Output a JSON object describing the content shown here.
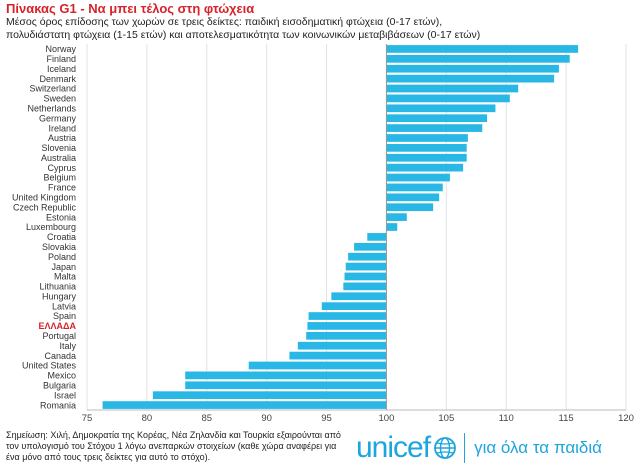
{
  "chart_data": {
    "type": "bar",
    "orientation": "horizontal",
    "title": "Πίνακας G1 -  Να μπει τέλος στη φτώχεια",
    "subtitle_lines": [
      "Μέσος όρος επίδοσης των χωρών σε τρεις δείκτες: παιδική εισοδηματική φτώχεια (0-17 ετών),",
      "πολυδιάστατη φτώχεια (1-15 ετών) και αποτελεσματικότητα των κοινωνικών μεταβιβάσεων (0-17 ετών)"
    ],
    "baseline": 100,
    "xlim": [
      75,
      120
    ],
    "xticks": [
      "75",
      "80",
      "85",
      "90",
      "95",
      "100",
      "105",
      "110",
      "115",
      "120"
    ],
    "bar_color": "#29b8e5",
    "highlight_color": "#d6232a",
    "highlight_category": "ΕΛΛΑΔΑ",
    "categories": [
      "Norway",
      "Finland",
      "Iceland",
      "Denmark",
      "Switzerland",
      "Sweden",
      "Netherlands",
      "Germany",
      "Ireland",
      "Austria",
      "Slovenia",
      "Australia",
      "Cyprus",
      "Belgium",
      "France",
      "United Kingdom",
      "Czech Republic",
      "Estonia",
      "Luxembourg",
      "Croatia",
      "Slovakia",
      "Poland",
      "Japan",
      "Malta",
      "Lithuania",
      "Hungary",
      "Latvia",
      "Spain",
      "ΕΛΛΑΔΑ",
      "Portugal",
      "Italy",
      "Canada",
      "United States",
      "Mexico",
      "Bulgaria",
      "Israel",
      "Romania"
    ],
    "values": [
      116.0,
      115.3,
      114.4,
      114.0,
      111.0,
      110.3,
      109.1,
      108.4,
      108.0,
      106.8,
      106.7,
      106.7,
      106.4,
      105.3,
      104.7,
      104.4,
      103.9,
      101.7,
      100.9,
      98.4,
      97.3,
      96.8,
      96.6,
      96.5,
      96.4,
      95.4,
      94.6,
      93.5,
      93.4,
      93.3,
      92.6,
      91.9,
      88.5,
      83.2,
      83.2,
      80.5,
      76.3
    ]
  },
  "footnote": "Σημείωση: Χιλή, Δημοκρατία της Κορέας, Νέα Ζηλανδία και Τουρκία εξαιρούνται από τον υπολογισμό του Στόχου 1 λόγω ανεπαρκών στοιχείων (καθε χώρα αναφέρει για ένα μόνο από τους τρεις δείκτες για αυτό το στόχο).",
  "brand": {
    "logo_text": "unicef",
    "tagline": "για όλα τα παιδιά",
    "color": "#1ca5de"
  }
}
